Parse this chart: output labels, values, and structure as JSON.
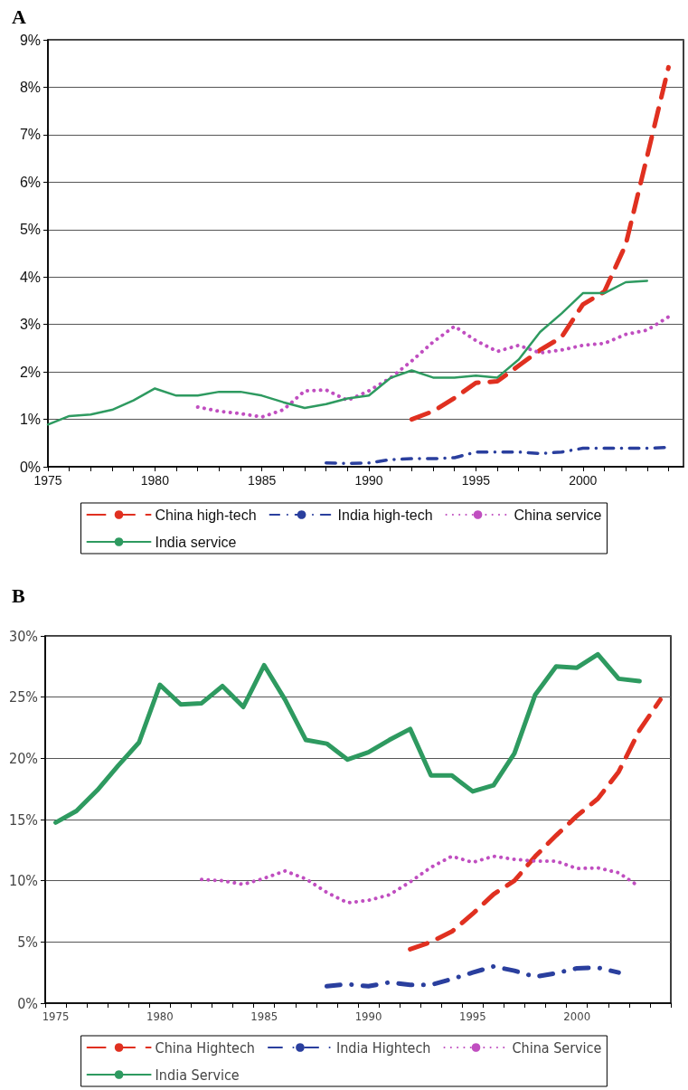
{
  "chart_data": [
    {
      "type": "line",
      "title": "A",
      "x": [
        1975,
        1976,
        1977,
        1978,
        1979,
        1980,
        1981,
        1982,
        1983,
        1984,
        1985,
        1986,
        1987,
        1988,
        1989,
        1990,
        1991,
        1992,
        1993,
        1994,
        1995,
        1996,
        1997,
        1998,
        1999,
        2000,
        2001,
        2002,
        2003,
        2004
      ],
      "xlim": [
        1975,
        2004.7
      ],
      "xticks": [
        1975,
        {
          "value": 1976,
          "label": null
        },
        {
          "value": 1977,
          "label": null
        },
        {
          "value": 1978,
          "label": null
        },
        {
          "value": 1979,
          "label": null
        },
        1980,
        {
          "value": 1981,
          "label": null
        },
        {
          "value": 1982,
          "label": null
        },
        {
          "value": 1983,
          "label": null
        },
        {
          "value": 1984,
          "label": null
        },
        1985,
        {
          "value": 1986,
          "label": null
        },
        {
          "value": 1987,
          "label": null
        },
        {
          "value": 1988,
          "label": null
        },
        {
          "value": 1989,
          "label": null
        },
        1990,
        {
          "value": 1991,
          "label": null
        },
        {
          "value": 1992,
          "label": null
        },
        {
          "value": 1993,
          "label": null
        },
        {
          "value": 1994,
          "label": null
        },
        1995,
        {
          "value": 1996,
          "label": null
        },
        {
          "value": 1997,
          "label": null
        },
        {
          "value": 1998,
          "label": null
        },
        {
          "value": 1999,
          "label": null
        },
        2000,
        {
          "value": 2001,
          "label": null
        },
        {
          "value": 2002,
          "label": null
        },
        {
          "value": 2003,
          "label": null
        },
        {
          "value": 2004,
          "label": null
        }
      ],
      "ylim": [
        0,
        9
      ],
      "yticks": [
        {
          "value": 0,
          "label": "0%"
        },
        {
          "value": 1,
          "label": "1%"
        },
        {
          "value": 2,
          "label": "2%"
        },
        {
          "value": 3,
          "label": "3%"
        },
        {
          "value": 4,
          "label": "4%"
        },
        {
          "value": 5,
          "label": "5%"
        },
        {
          "value": 6,
          "label": "6%"
        },
        {
          "value": 7,
          "label": "7%"
        },
        {
          "value": 8,
          "label": "8%"
        },
        {
          "value": 9,
          "label": "9%"
        }
      ],
      "grid": "y",
      "legend": "bottom",
      "marker": "none",
      "series": [
        {
          "name": "China high-tech",
          "color": "#e03020",
          "line_style": "dashed",
          "values": [
            null,
            null,
            null,
            null,
            null,
            null,
            null,
            null,
            null,
            null,
            null,
            null,
            null,
            null,
            null,
            null,
            null,
            1.0,
            1.17,
            1.45,
            1.77,
            1.8,
            2.13,
            2.46,
            2.73,
            3.42,
            3.69,
            4.68,
            6.54,
            8.42
          ]
        },
        {
          "name": "India high-tech",
          "color": "#2a3f9e",
          "line_style": "dashdot",
          "values": [
            null,
            null,
            null,
            null,
            null,
            null,
            null,
            null,
            null,
            null,
            null,
            null,
            null,
            0.08,
            0.07,
            0.08,
            0.15,
            0.17,
            0.17,
            0.19,
            0.31,
            0.31,
            0.31,
            0.28,
            0.31,
            0.39,
            0.39,
            0.39,
            0.39,
            0.41
          ]
        },
        {
          "name": "China service",
          "color": "#c04ec0",
          "line_style": "dotted",
          "values": [
            null,
            null,
            null,
            null,
            null,
            null,
            null,
            1.26,
            1.17,
            1.12,
            1.05,
            1.2,
            1.6,
            1.62,
            1.4,
            1.6,
            1.87,
            2.23,
            2.63,
            2.96,
            2.66,
            2.43,
            2.56,
            2.4,
            2.46,
            2.56,
            2.6,
            2.79,
            2.88,
            3.16
          ]
        },
        {
          "name": "India service",
          "color": "#2e9a60",
          "line_style": "solid",
          "values": [
            0.89,
            1.07,
            1.1,
            1.2,
            1.4,
            1.65,
            1.5,
            1.5,
            1.58,
            1.58,
            1.5,
            1.36,
            1.24,
            1.32,
            1.44,
            1.5,
            1.87,
            2.03,
            1.88,
            1.88,
            1.92,
            1.88,
            2.26,
            2.84,
            3.23,
            3.66,
            3.66,
            3.89,
            3.92,
            null
          ]
        }
      ]
    },
    {
      "type": "line",
      "title": "B",
      "categories": [
        "1975",
        null,
        null,
        null,
        null,
        "1980",
        null,
        null,
        null,
        null,
        "1985",
        null,
        null,
        null,
        null,
        "1990",
        null,
        null,
        null,
        null,
        "1995",
        null,
        null,
        null,
        null,
        "2000",
        null,
        null,
        null,
        null
      ],
      "ylim": [
        0,
        30
      ],
      "yticks": [
        {
          "value": 0,
          "label": "0%"
        },
        {
          "value": 5,
          "label": "5%"
        },
        {
          "value": 10,
          "label": "10%"
        },
        {
          "value": 15,
          "label": "15%"
        },
        {
          "value": 20,
          "label": "20%"
        },
        {
          "value": 25,
          "label": "25%"
        },
        {
          "value": 30,
          "label": "30%"
        }
      ],
      "grid": "y",
      "legend": "bottom",
      "marker": "none",
      "series": [
        {
          "name": "China Hightech",
          "color": "#e03020",
          "line_style": "dashed",
          "values": [
            null,
            null,
            null,
            null,
            null,
            null,
            null,
            null,
            null,
            null,
            null,
            null,
            null,
            null,
            null,
            null,
            null,
            4.4,
            5.0,
            5.85,
            7.3,
            8.9,
            10.0,
            12.0,
            13.7,
            15.3,
            16.7,
            18.9,
            22.3,
            24.8
          ]
        },
        {
          "name": "India Hightech",
          "color": "#2a3f9e",
          "line_style": "dashdot",
          "values": [
            null,
            null,
            null,
            null,
            null,
            null,
            null,
            null,
            null,
            null,
            null,
            null,
            null,
            1.38,
            1.55,
            1.38,
            1.7,
            1.5,
            1.5,
            1.97,
            2.5,
            3.0,
            2.65,
            2.15,
            2.45,
            2.85,
            2.9,
            2.5,
            null,
            null
          ]
        },
        {
          "name": "China Service",
          "color": "#c04ec0",
          "line_style": "dotted",
          "values": [
            null,
            null,
            null,
            null,
            null,
            null,
            null,
            10.1,
            10.0,
            9.7,
            10.2,
            10.8,
            10.15,
            9.05,
            8.2,
            8.4,
            8.85,
            9.9,
            11.1,
            12.0,
            11.5,
            12.0,
            11.75,
            11.6,
            11.6,
            11.0,
            11.05,
            10.65,
            9.5,
            null
          ]
        },
        {
          "name": "India Service",
          "color": "#2e9a60",
          "line_style": "solid",
          "values": [
            14.75,
            15.7,
            17.4,
            19.4,
            21.3,
            26.0,
            24.4,
            24.5,
            25.9,
            24.2,
            27.6,
            24.8,
            21.5,
            21.2,
            19.9,
            20.5,
            21.5,
            22.4,
            18.6,
            18.6,
            17.3,
            17.8,
            20.4,
            25.2,
            27.5,
            27.4,
            28.5,
            26.5,
            26.3,
            null
          ]
        }
      ]
    }
  ]
}
